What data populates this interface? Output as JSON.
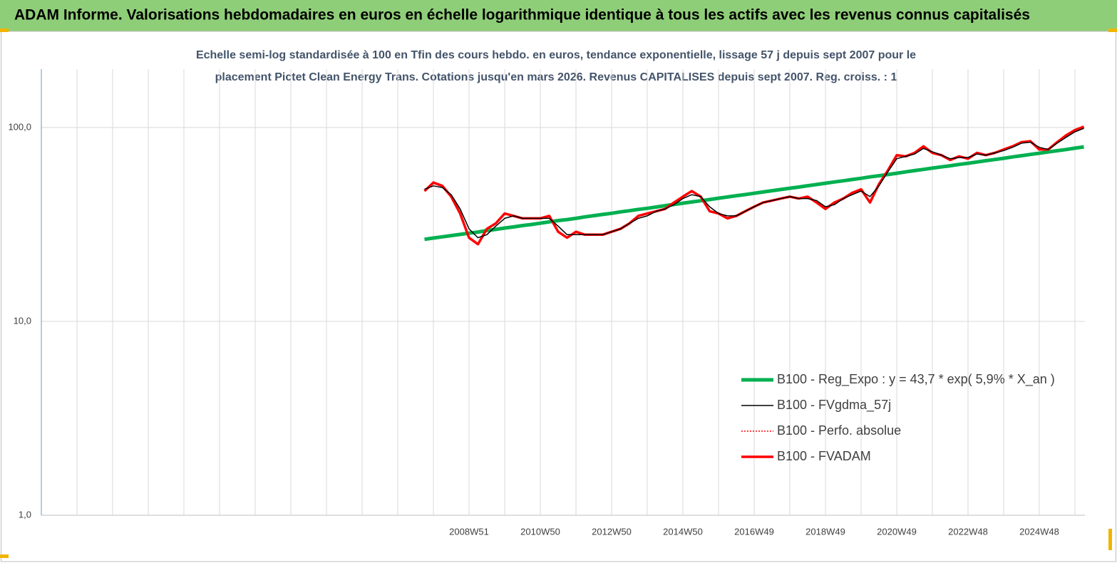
{
  "header": {
    "title": "ADAM Informe. Valorisations hebdomadaires en euros en échelle logarithmique identique à tous les actifs avec les revenus connus capitalisés"
  },
  "chart_data": {
    "type": "line",
    "title": [
      "Echelle semi-log standardisée à 100 en Tfin des cours hebdo. en euros, tendance exponentielle, lissage 57 j depuis sept 2007 pour le",
      "placement Pictet Clean Energy Trans. Cotations jusqu'en mars 2026. Revenus CAPITALISES depuis sept 2007. Reg. croiss. : 1"
    ],
    "log_scale": true,
    "ylim": [
      1,
      200
    ],
    "yticks": [
      {
        "value": 1,
        "label": "1,0"
      },
      {
        "value": 10,
        "label": "10,0"
      },
      {
        "value": 100,
        "label": "100,0"
      }
    ],
    "categories": [
      null,
      null,
      null,
      null,
      null,
      "2008W51",
      null,
      null,
      null,
      null,
      null,
      null,
      null,
      "2010W50",
      null,
      null,
      null,
      null,
      null,
      null,
      null,
      "2012W50",
      null,
      null,
      null,
      null,
      null,
      null,
      null,
      "2014W50",
      null,
      null,
      null,
      null,
      null,
      null,
      null,
      "2016W49",
      null,
      null,
      null,
      null,
      null,
      null,
      null,
      "2018W49",
      null,
      null,
      null,
      null,
      null,
      null,
      null,
      "2020W49",
      null,
      null,
      null,
      null,
      null,
      null,
      null,
      "2022W48",
      null,
      null,
      null,
      null,
      null,
      null,
      null,
      "2024W48",
      null,
      null,
      null,
      null,
      null
    ],
    "series": [
      {
        "name": "B100 - Reg_Expo : y = 43,7 * exp( 5,9% * X_an )",
        "color": "#00b050",
        "width": 5,
        "values": [
          26.5,
          26.9,
          27.3,
          27.7,
          28.1,
          28.5,
          28.9,
          29.4,
          29.8,
          30.3,
          30.7,
          31.2,
          31.6,
          32.1,
          32.6,
          33.1,
          33.5,
          34.0,
          34.6,
          35.1,
          35.6,
          36.1,
          36.7,
          37.2,
          37.8,
          38.3,
          38.9,
          39.5,
          40.1,
          40.7,
          41.3,
          41.9,
          42.5,
          43.2,
          43.8,
          44.5,
          45.1,
          45.8,
          46.5,
          47.2,
          47.9,
          48.6,
          49.3,
          50.1,
          50.8,
          51.6,
          52.4,
          53.1,
          53.9,
          54.7,
          55.6,
          56.4,
          57.2,
          58.1,
          59.0,
          59.9,
          60.8,
          61.7,
          62.6,
          63.5,
          64.5,
          65.4,
          66.4,
          67.4,
          68.4,
          69.4,
          70.5,
          71.5,
          72.6,
          73.7,
          74.8,
          75.9,
          77.0,
          78.2,
          79.4
        ]
      },
      {
        "name": "B100 - FVgdma_57j",
        "color": "#000000",
        "width": 1.5,
        "values": [
          48,
          50,
          49,
          45,
          38,
          30,
          27,
          28,
          31,
          34,
          35,
          34,
          34,
          34,
          34,
          31,
          28,
          28,
          28,
          28,
          28,
          29,
          30,
          32,
          34,
          35,
          37,
          38,
          40,
          43,
          45,
          44,
          39,
          36,
          35,
          35,
          37,
          39,
          41,
          42,
          43,
          44,
          43,
          43,
          42,
          39,
          40,
          43,
          45,
          47,
          44,
          50,
          59,
          69,
          71,
          73,
          78,
          75,
          72,
          69,
          70,
          70,
          73,
          72,
          74,
          76,
          79,
          83,
          84,
          79,
          77,
          83,
          89,
          95,
          99
        ]
      },
      {
        "name": "B100 - Perfo. absolue",
        "color": "#ff0000",
        "width": 1.5,
        "dashed": true,
        "values": [
          47,
          52,
          50,
          44,
          36,
          27,
          25,
          30,
          32,
          36,
          35,
          34,
          34,
          34,
          35,
          29,
          27,
          29,
          28,
          28,
          28,
          29,
          30,
          32,
          35,
          36,
          37,
          38,
          41,
          44,
          47,
          44,
          37,
          36,
          34,
          35,
          37,
          39,
          41,
          42,
          43,
          44,
          43,
          44,
          41,
          38,
          41,
          43,
          46,
          48,
          41,
          51,
          60,
          72,
          71,
          74,
          80,
          74,
          72,
          68,
          71,
          69,
          74,
          72,
          74,
          77,
          80,
          84,
          85,
          77,
          77,
          84,
          91,
          97,
          101
        ]
      },
      {
        "name": "B100 - FVADAM",
        "color": "#ff0000",
        "width": 3.5,
        "values": [
          47,
          52,
          50,
          44,
          36,
          27,
          25,
          30,
          32,
          36,
          35,
          34,
          34,
          34,
          35,
          29,
          27,
          29,
          28,
          28,
          28,
          29,
          30,
          32,
          35,
          36,
          37,
          38,
          41,
          44,
          47,
          44,
          37,
          36,
          34,
          35,
          37,
          39,
          41,
          42,
          43,
          44,
          43,
          44,
          41,
          38,
          41,
          43,
          46,
          48,
          41,
          51,
          60,
          72,
          71,
          74,
          80,
          74,
          72,
          68,
          71,
          69,
          74,
          72,
          74,
          77,
          80,
          84,
          85,
          77,
          77,
          84,
          91,
          97,
          101
        ]
      }
    ]
  }
}
